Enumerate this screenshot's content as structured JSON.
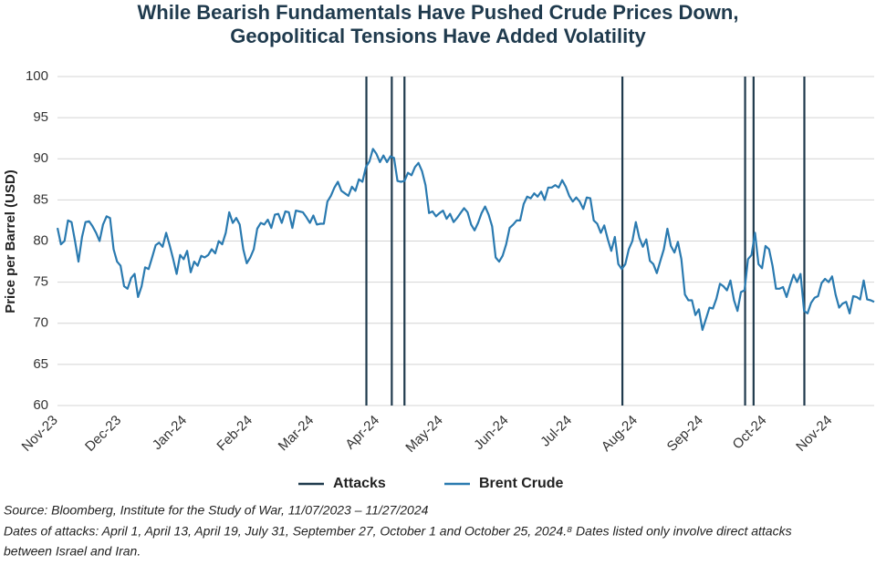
{
  "chart_data": {
    "type": "line",
    "title": [
      "While Bearish Fundamentals Have Pushed Crude Prices Down,",
      "Geopolitical Tensions Have Added Volatility"
    ],
    "y_label": "Price per Barrel (USD)",
    "xlim": [
      "2023-11-07",
      "2024-11-27"
    ],
    "xticks": [
      {
        "value": "2023-11-01",
        "label": "Nov-23"
      },
      {
        "value": "2023-12-01",
        "label": "Dec-23"
      },
      {
        "value": "2024-01-01",
        "label": "Jan-24"
      },
      {
        "value": "2024-02-01",
        "label": "Feb-24"
      },
      {
        "value": "2024-03-01",
        "label": "Mar-24"
      },
      {
        "value": "2024-04-01",
        "label": "Apr-24"
      },
      {
        "value": "2024-05-01",
        "label": "May-24"
      },
      {
        "value": "2024-06-01",
        "label": "Jun-24"
      },
      {
        "value": "2024-07-01",
        "label": "Jul-24"
      },
      {
        "value": "2024-08-01",
        "label": "Aug-24"
      },
      {
        "value": "2024-09-01",
        "label": "Sep-24"
      },
      {
        "value": "2024-10-01",
        "label": "Oct-24"
      },
      {
        "value": "2024-11-01",
        "label": "Nov-24"
      }
    ],
    "ylim": [
      60,
      100
    ],
    "yticks": [
      60,
      65,
      70,
      75,
      80,
      85,
      90,
      95,
      100
    ],
    "grid": true,
    "series": [
      {
        "name": "Attacks",
        "color": "#1f3a4d",
        "x": [
          "2024-04-01",
          "2024-04-13",
          "2024-04-19",
          "2024-07-31",
          "2024-09-27",
          "2024-10-01",
          "2024-10-25"
        ]
      },
      {
        "name": "Brent Crude",
        "color": "#2a7ab0",
        "values": [
          81.6,
          79.6,
          80,
          82.5,
          82.3,
          80,
          77.5,
          80.5,
          82.3,
          82.4,
          81.8,
          81,
          80,
          82,
          83,
          82.8,
          79,
          77.5,
          77,
          74.5,
          74.2,
          75.5,
          76,
          73.2,
          74.5,
          76.8,
          76.6,
          78,
          79.5,
          79.8,
          79.3,
          81,
          79.5,
          77.8,
          76,
          78.3,
          77.8,
          78.8,
          76.2,
          77.5,
          77,
          78.2,
          78,
          78.3,
          79,
          78.5,
          80,
          79.6,
          81,
          83.5,
          82.2,
          82.8,
          82,
          79,
          77.3,
          78,
          79,
          81.5,
          82.2,
          82,
          82.6,
          81.6,
          83.2,
          83.3,
          82.2,
          83.6,
          83.5,
          81.6,
          83.7,
          83.6,
          83.5,
          82.9,
          82.2,
          83.1,
          82,
          82.1,
          82.1,
          84.8,
          85.5,
          86.5,
          87.2,
          86.1,
          85.8,
          85.5,
          86.6,
          86.1,
          87.5,
          87.2,
          89,
          89.7,
          91.2,
          90.6,
          89.6,
          90.4,
          89.6,
          90.3,
          90.1,
          87.3,
          87.2,
          87.3,
          88.3,
          88,
          89,
          89.5,
          88.5,
          86.8,
          83.4,
          83.6,
          83,
          83.4,
          83.7,
          82.7,
          83.3,
          82.3,
          82.8,
          83.4,
          84,
          83.5,
          82,
          81.3,
          82.2,
          83.4,
          84.2,
          83.2,
          81.8,
          78,
          77.5,
          78.2,
          79.6,
          81.6,
          82,
          82.5,
          82.5,
          84.5,
          85.4,
          85.2,
          85.8,
          85.4,
          86,
          85,
          86.5,
          86.5,
          86.8,
          86.5,
          87.4,
          86.6,
          85.5,
          84.8,
          85.3,
          84.8,
          83.9,
          85.3,
          85.2,
          82.5,
          82.1,
          81,
          81.9,
          80.2,
          78.8,
          80.5,
          77.2,
          76.6,
          77.2,
          79,
          80,
          82.3,
          80.4,
          79.3,
          80.2,
          77.6,
          77.2,
          76.1,
          77.6,
          79,
          81.5,
          79.4,
          78.6,
          79.9,
          77.8,
          73.5,
          72.8,
          72.8,
          71,
          71.7,
          69.2,
          70.5,
          71.9,
          71.8,
          73,
          74.8,
          74.5,
          74,
          75.2,
          72.8,
          71.5,
          73.8,
          74,
          77.8,
          78.3,
          81,
          77.2,
          76.7,
          79.4,
          79,
          77,
          74.2,
          74.2,
          74.4,
          73.2,
          74.6,
          75.9,
          75,
          76,
          71.5,
          71.2,
          72.5,
          73.1,
          73.3,
          74.9,
          75.4,
          75,
          75.7,
          73.5,
          71.9,
          72.4,
          72.6,
          71.2,
          73.3,
          73.2,
          72.9,
          75.2,
          72.9,
          72.8,
          72.6
        ]
      }
    ],
    "notes": [
      "Source: Bloomberg, Institute for the Study of War, 11/07/2023 – 11/27/2024",
      "Dates of attacks: April 1, April 13, April 19, July 31, September 27, October 1 and October 25, 2024.⁸ Dates listed only involve direct attacks",
      "between Israel and Iran."
    ]
  }
}
